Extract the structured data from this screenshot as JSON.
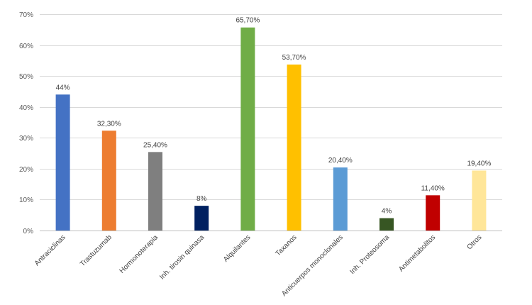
{
  "chart_data": {
    "type": "bar",
    "title": "",
    "xlabel": "",
    "ylabel": "",
    "categories": [
      "Antraciclinas",
      "Trastuzumab",
      "Hormonoterapia",
      "Inh. tirosin quinasa",
      "Alquilantes",
      "Taxanos",
      "Anticuerpos monoclonales",
      "Inh. Proteosoma",
      "Antimetabolitos",
      "Otros"
    ],
    "values": [
      44,
      32.3,
      25.4,
      8,
      65.7,
      53.7,
      20.4,
      4,
      11.4,
      19.4
    ],
    "data_labels": [
      "44%",
      "32,30%",
      "25,40%",
      "8%",
      "65,70%",
      "53,70%",
      "20,40%",
      "4%",
      "11,40%",
      "19,40%"
    ],
    "colors": [
      "#4472C4",
      "#ED7D31",
      "#7F7F7F",
      "#002060",
      "#70AD47",
      "#FFC000",
      "#5B9BD5",
      "#375623",
      "#C00000",
      "#FFE699"
    ],
    "ylim": [
      0,
      70
    ],
    "yticks": [
      0,
      10,
      20,
      30,
      40,
      50,
      60,
      70
    ],
    "ytick_labels": [
      "0%",
      "10%",
      "20%",
      "30%",
      "40%",
      "50%",
      "60%",
      "70%"
    ],
    "grid": true,
    "legend": "none"
  }
}
